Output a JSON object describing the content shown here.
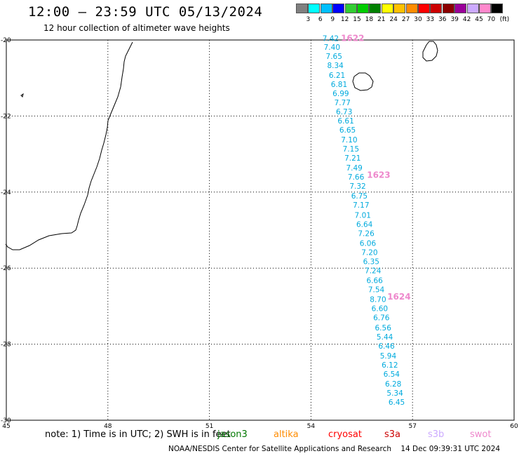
{
  "header": {
    "title": "12:00 – 23:59 UTC 05/13/2024",
    "subtitle": "12 hour collection of altimeter wave heights"
  },
  "colorbar": {
    "unit": "(ft)",
    "colors": [
      "#808080",
      "#00ffff",
      "#00bfff",
      "#0000ff",
      "#32cd32",
      "#00cc00",
      "#008000",
      "#ffff00",
      "#ffc000",
      "#ff8c00",
      "#ff0000",
      "#cc0000",
      "#8b0000",
      "#990099",
      "#ccaaff",
      "#ff88cc",
      "#000000"
    ],
    "labels": [
      "3",
      "6",
      "9",
      "12",
      "15",
      "18",
      "21",
      "24",
      "27",
      "30",
      "33",
      "36",
      "39",
      "42",
      "45",
      "70"
    ]
  },
  "map": {
    "lon_range": [
      45,
      60
    ],
    "lat_range": [
      -30,
      -20
    ],
    "lon_ticks": [
      "45",
      "48",
      "51",
      "54",
      "57",
      "60"
    ],
    "lat_ticks": [
      "-20",
      "-22",
      "-24",
      "-26",
      "-28",
      "-30"
    ],
    "track_color": "#00aadd",
    "pass_color": "#ee88cc",
    "pass_labels": [
      {
        "text": "1622",
        "lon": 55.23,
        "lat": -19.95
      },
      {
        "text": "1623",
        "lon": 56.0,
        "lat": -23.55
      },
      {
        "text": "1624",
        "lon": 56.6,
        "lat": -26.75
      }
    ],
    "wave_heights": [
      {
        "v": "7.42",
        "lon": 54.58,
        "lat": -19.95
      },
      {
        "v": "7.40",
        "lon": 54.62,
        "lat": -20.18
      },
      {
        "v": "7.65",
        "lon": 54.68,
        "lat": -20.42
      },
      {
        "v": "8.34",
        "lon": 54.72,
        "lat": -20.66
      },
      {
        "v": "6.21",
        "lon": 54.77,
        "lat": -20.92
      },
      {
        "v": "6.81",
        "lon": 54.83,
        "lat": -21.16
      },
      {
        "v": "6.99",
        "lon": 54.88,
        "lat": -21.4
      },
      {
        "v": "7.77",
        "lon": 54.93,
        "lat": -21.64
      },
      {
        "v": "6.73",
        "lon": 54.98,
        "lat": -21.88
      },
      {
        "v": "6.61",
        "lon": 55.03,
        "lat": -22.12
      },
      {
        "v": "6.65",
        "lon": 55.08,
        "lat": -22.36
      },
      {
        "v": "7.10",
        "lon": 55.13,
        "lat": -22.62
      },
      {
        "v": "7.15",
        "lon": 55.18,
        "lat": -22.86
      },
      {
        "v": "7.21",
        "lon": 55.23,
        "lat": -23.1
      },
      {
        "v": "7.49",
        "lon": 55.28,
        "lat": -23.36
      },
      {
        "v": "7.66",
        "lon": 55.33,
        "lat": -23.6
      },
      {
        "v": "7.32",
        "lon": 55.38,
        "lat": -23.84
      },
      {
        "v": "6.75",
        "lon": 55.43,
        "lat": -24.1
      },
      {
        "v": "7.17",
        "lon": 55.48,
        "lat": -24.34
      },
      {
        "v": "7.01",
        "lon": 55.53,
        "lat": -24.6
      },
      {
        "v": "6.64",
        "lon": 55.58,
        "lat": -24.84
      },
      {
        "v": "7.26",
        "lon": 55.63,
        "lat": -25.08
      },
      {
        "v": "6.06",
        "lon": 55.68,
        "lat": -25.34
      },
      {
        "v": "7.20",
        "lon": 55.73,
        "lat": -25.58
      },
      {
        "v": "6.35",
        "lon": 55.78,
        "lat": -25.82
      },
      {
        "v": "7.24",
        "lon": 55.83,
        "lat": -26.06
      },
      {
        "v": "6.66",
        "lon": 55.88,
        "lat": -26.32
      },
      {
        "v": "7.54",
        "lon": 55.93,
        "lat": -26.56
      },
      {
        "v": "8.70",
        "lon": 55.98,
        "lat": -26.82
      },
      {
        "v": "6.60",
        "lon": 56.03,
        "lat": -27.06
      },
      {
        "v": "6.76",
        "lon": 56.08,
        "lat": -27.3
      },
      {
        "v": "6.56",
        "lon": 56.13,
        "lat": -27.56
      },
      {
        "v": "5.44",
        "lon": 56.18,
        "lat": -27.8
      },
      {
        "v": "6.46",
        "lon": 56.23,
        "lat": -28.04
      },
      {
        "v": "5.94",
        "lon": 56.28,
        "lat": -28.3
      },
      {
        "v": "6.12",
        "lon": 56.33,
        "lat": -28.54
      },
      {
        "v": "6.54",
        "lon": 56.38,
        "lat": -28.78
      },
      {
        "v": "6.28",
        "lon": 56.43,
        "lat": -29.04
      },
      {
        "v": "5.34",
        "lon": 56.48,
        "lat": -29.28
      },
      {
        "v": "6.45",
        "lon": 56.53,
        "lat": -29.52
      }
    ]
  },
  "note": {
    "text": "note: 1) Time is in UTC; 2) SWH is in feet",
    "satellites": [
      {
        "name": "jason3",
        "color": "#007700"
      },
      {
        "name": "altika",
        "color": "#ff8c00"
      },
      {
        "name": "cryosat",
        "color": "#ff0000"
      },
      {
        "name": "s3a",
        "color": "#cc0000"
      },
      {
        "name": "s3b",
        "color": "#ccaaff"
      },
      {
        "name": "swot",
        "color": "#ee88cc"
      }
    ]
  },
  "footer": {
    "credit": "NOAA/NESDIS Center for Satellite Applications and Research",
    "timestamp": "14 Dec 09:39:31 UTC 2024"
  }
}
